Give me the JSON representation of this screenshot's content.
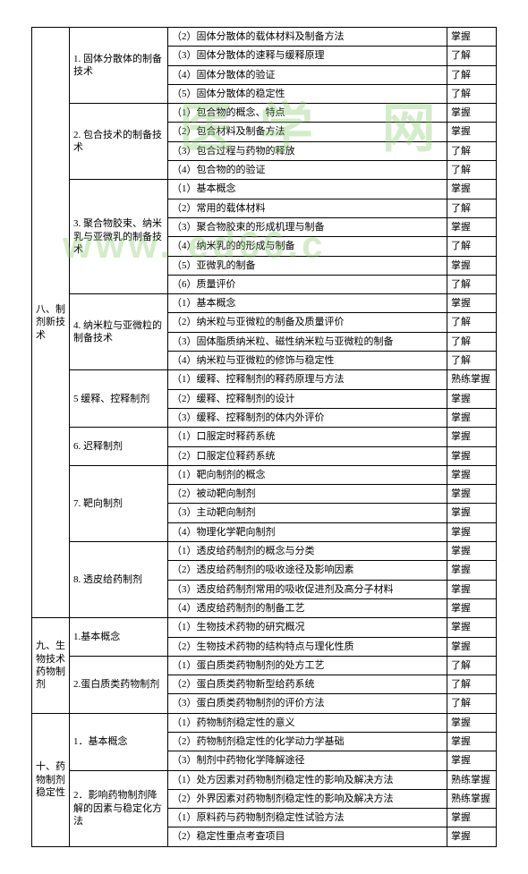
{
  "watermarks": {
    "wm1": "医学 网",
    "wm2": "www.   ed66.c"
  },
  "sections": [
    {
      "cat": "八、制剂新技术",
      "groups": [
        {
          "sub": "1. 固体分散体的制备技术",
          "rows": [
            {
              "item": "（2）固体分散体的载体材料及制备方法",
              "req": "掌握"
            },
            {
              "item": "（3）固体分散体的速释与缓释原理",
              "req": "了解"
            },
            {
              "item": "（4）固体分散体的验证",
              "req": "了解"
            },
            {
              "item": "（5）固体分散体的稳定性",
              "req": "了解"
            }
          ]
        },
        {
          "sub": "2. 包合技术的制备技术",
          "rows": [
            {
              "item": "（1）包合物的概念、特点",
              "req": "掌握"
            },
            {
              "item": "（2）包合材料及制备方法",
              "req": "掌握"
            },
            {
              "item": "（3）包合过程与药物的释放",
              "req": "了解"
            },
            {
              "item": "（4）包合物的的验证",
              "req": "了解"
            }
          ]
        },
        {
          "sub": "3. 聚合物胶束、纳米乳与亚微乳的制备技术",
          "rows": [
            {
              "item": "（1）基本概念",
              "req": "掌握"
            },
            {
              "item": "（2）常用的载体材料",
              "req": "了解"
            },
            {
              "item": "（3）聚合物胶束的形成机理与制备",
              "req": "掌握"
            },
            {
              "item": "（4）纳米乳的的形成与制备",
              "req": "了解"
            },
            {
              "item": "（5）亚微乳的制备",
              "req": "掌握"
            },
            {
              "item": "（6）质量评价",
              "req": "了解"
            }
          ]
        },
        {
          "sub": "4. 纳米粒与亚微粒的制备技术",
          "rows": [
            {
              "item": "（1）基本概念",
              "req": "掌握"
            },
            {
              "item": "（2）纳米粒与亚微粒的制备及质量评价",
              "req": "了解"
            },
            {
              "item": "（3）固体脂质纳米粒、磁性纳米粒与亚微粒的制备",
              "req": "了解"
            },
            {
              "item": "（4）纳米粒与亚微粒的修饰与稳定性",
              "req": "了解"
            }
          ]
        },
        {
          "sub": "5 缓释、控释制剂",
          "rows": [
            {
              "item": "（1）缓释、控释制剂的释药原理与方法",
              "req": "熟练掌握"
            },
            {
              "item": "（2）缓释、控释制剂的设计",
              "req": "掌握"
            },
            {
              "item": "（3）缓释、控释制剂的体内外评价",
              "req": "掌握"
            }
          ]
        },
        {
          "sub": "6. 迟释制剂",
          "rows": [
            {
              "item": "（1）口服定时释药系统",
              "req": "掌握"
            },
            {
              "item": "（2）口服定位释药系统",
              "req": "掌握"
            }
          ]
        },
        {
          "sub": "7. 靶向制剂",
          "rows": [
            {
              "item": "（1）靶向制剂的概念",
              "req": "掌握"
            },
            {
              "item": "（2）被动靶向制剂",
              "req": "掌握"
            },
            {
              "item": "（3）主动靶向制剂",
              "req": "掌握"
            },
            {
              "item": "（4）物理化学靶向制剂",
              "req": "掌握"
            }
          ]
        },
        {
          "sub": "8. 透皮给药制剂",
          "rows": [
            {
              "item": "（1）透皮给药制剂的概念与分类",
              "req": "掌握"
            },
            {
              "item": "（2）透皮给药制剂的吸收途径及影响因素",
              "req": "掌握"
            },
            {
              "item": "（3）透皮给药制剂常用的吸收促进剂及高分子材料",
              "req": "掌握"
            },
            {
              "item": "（4）透皮给药制剂的制备工艺",
              "req": "掌握"
            }
          ]
        }
      ]
    },
    {
      "cat": "九、生物技术药物制剂",
      "groups": [
        {
          "sub": "1.基本概念",
          "rows": [
            {
              "item": "（1）生物技术药物的研究概况",
              "req": "掌握"
            },
            {
              "item": "（2）生物技术药物的结构特点与理化性质",
              "req": "掌握"
            }
          ]
        },
        {
          "sub": "2.蛋白质类药物制剂",
          "rows": [
            {
              "item": "（1）蛋白质类药物制剂的处方工艺",
              "req": "了解"
            },
            {
              "item": "（2）蛋白质类药物新型给药系统",
              "req": "了解"
            },
            {
              "item": "（3）蛋白质类药物制剂的评价方法",
              "req": "了解"
            }
          ]
        }
      ]
    },
    {
      "cat": "十、药物制剂稳定性",
      "groups": [
        {
          "sub": "1．基本概念",
          "rows": [
            {
              "item": "（1）药物制剂稳定性的意义",
              "req": "掌握"
            },
            {
              "item": "（2）药物制剂稳定性的化学动力学基础",
              "req": "掌握"
            },
            {
              "item": "（3）制剂中药物化学降解途径",
              "req": "掌握"
            }
          ]
        },
        {
          "sub": "2．影响药物制剂降解的因素与稳定化方法",
          "rows": [
            {
              "item": "（1）处方因素对药物制剂稳定性的影响及解决方法",
              "req": "熟练掌握"
            },
            {
              "item": "（2）外界因素对药物制剂稳定性的影响及解决方法",
              "req": "熟练掌握"
            },
            {
              "item": "（1）原料药与药物制剂稳定性试验方法",
              "req": "掌握"
            },
            {
              "item": "（2）稳定性重点考查项目",
              "req": "掌握"
            }
          ]
        }
      ]
    }
  ]
}
